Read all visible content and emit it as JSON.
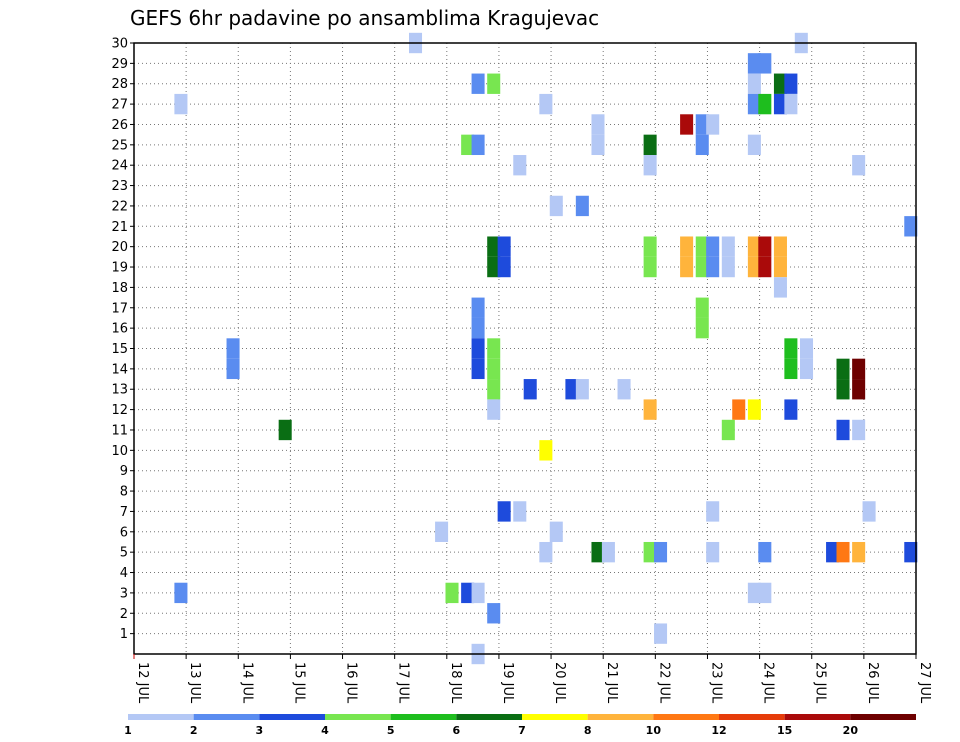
{
  "chart_data": {
    "type": "heatmap",
    "title": "GEFS 6hr padavine po ansamblima Kragujevac",
    "x_tick_labels": [
      "12 JUL",
      "13 JUL",
      "14 JUL",
      "15 JUL",
      "16 JUL",
      "17 JUL",
      "18 JUL",
      "19 JUL",
      "20 JUL",
      "21 JUL",
      "22 JUL",
      "23 JUL",
      "24 JUL",
      "25 JUL",
      "26 JUL",
      "27 JUL"
    ],
    "y_tick_labels": [
      "1",
      "2",
      "3",
      "4",
      "5",
      "6",
      "7",
      "8",
      "9",
      "10",
      "11",
      "12",
      "13",
      "14",
      "15",
      "16",
      "17",
      "18",
      "19",
      "20",
      "21",
      "22",
      "23",
      "24",
      "25",
      "26",
      "27",
      "28",
      "29",
      "30"
    ],
    "xlim_days": [
      12,
      27
    ],
    "ylim": [
      0,
      30
    ],
    "grid": true,
    "legend": {
      "position": "bottom",
      "labels": [
        "1",
        "2",
        "3",
        "4",
        "5",
        "6",
        "7",
        "8",
        "10",
        "12",
        "15",
        "20"
      ],
      "colors": [
        "#b4c8f5",
        "#5a8cf0",
        "#1e4bdc",
        "#78e650",
        "#1ebe1e",
        "#0a6e14",
        "#ffff00",
        "#ffb43c",
        "#ff7814",
        "#e63c0a",
        "#aa0a0a",
        "#6e0000"
      ]
    },
    "cells": [
      {
        "m": 30,
        "t": 17.4,
        "c": 1
      },
      {
        "m": 30,
        "t": 24.8,
        "c": 1
      },
      {
        "m": 29,
        "t": 23.9,
        "c": 2
      },
      {
        "m": 29,
        "t": 24.1,
        "c": 2
      },
      {
        "m": 28,
        "t": 18.6,
        "c": 2
      },
      {
        "m": 28,
        "t": 18.9,
        "c": 4
      },
      {
        "m": 28,
        "t": 23.9,
        "c": 1
      },
      {
        "m": 28,
        "t": 24.4,
        "c": 6
      },
      {
        "m": 28,
        "t": 24.6,
        "c": 3
      },
      {
        "m": 27,
        "t": 12.9,
        "c": 1
      },
      {
        "m": 27,
        "t": 19.9,
        "c": 1
      },
      {
        "m": 27,
        "t": 23.9,
        "c": 2
      },
      {
        "m": 27,
        "t": 24.1,
        "c": 5
      },
      {
        "m": 27,
        "t": 24.4,
        "c": 3
      },
      {
        "m": 27,
        "t": 24.6,
        "c": 1
      },
      {
        "m": 26,
        "t": 20.9,
        "c": 1
      },
      {
        "m": 26,
        "t": 22.6,
        "c": 11
      },
      {
        "m": 26,
        "t": 22.9,
        "c": 2
      },
      {
        "m": 26,
        "t": 23.1,
        "c": 1
      },
      {
        "m": 25,
        "t": 18.4,
        "c": 4
      },
      {
        "m": 25,
        "t": 18.6,
        "c": 2
      },
      {
        "m": 25,
        "t": 20.9,
        "c": 1
      },
      {
        "m": 25,
        "t": 21.9,
        "c": 6
      },
      {
        "m": 25,
        "t": 22.9,
        "c": 2
      },
      {
        "m": 25,
        "t": 23.9,
        "c": 1
      },
      {
        "m": 24,
        "t": 19.4,
        "c": 1
      },
      {
        "m": 24,
        "t": 21.9,
        "c": 1
      },
      {
        "m": 24,
        "t": 25.9,
        "c": 1
      },
      {
        "m": 22,
        "t": 20.1,
        "c": 1
      },
      {
        "m": 22,
        "t": 20.6,
        "c": 2
      },
      {
        "m": 21,
        "t": 26.9,
        "c": 2
      },
      {
        "m": 20,
        "t": 18.9,
        "c": 6
      },
      {
        "m": 20,
        "t": 19.1,
        "c": 3
      },
      {
        "m": 20,
        "t": 21.9,
        "c": 4
      },
      {
        "m": 20,
        "t": 22.6,
        "c": 8
      },
      {
        "m": 20,
        "t": 22.9,
        "c": 4
      },
      {
        "m": 20,
        "t": 23.1,
        "c": 2
      },
      {
        "m": 20,
        "t": 23.4,
        "c": 1
      },
      {
        "m": 20,
        "t": 23.9,
        "c": 8
      },
      {
        "m": 20,
        "t": 24.1,
        "c": 11
      },
      {
        "m": 20,
        "t": 24.4,
        "c": 8
      },
      {
        "m": 19,
        "t": 18.9,
        "c": 6
      },
      {
        "m": 19,
        "t": 19.1,
        "c": 3
      },
      {
        "m": 19,
        "t": 21.9,
        "c": 4
      },
      {
        "m": 19,
        "t": 22.6,
        "c": 8
      },
      {
        "m": 19,
        "t": 22.9,
        "c": 4
      },
      {
        "m": 19,
        "t": 23.1,
        "c": 2
      },
      {
        "m": 19,
        "t": 23.4,
        "c": 1
      },
      {
        "m": 19,
        "t": 23.9,
        "c": 8
      },
      {
        "m": 19,
        "t": 24.1,
        "c": 11
      },
      {
        "m": 19,
        "t": 24.4,
        "c": 8
      },
      {
        "m": 18,
        "t": 24.4,
        "c": 1
      },
      {
        "m": 17,
        "t": 18.6,
        "c": 2
      },
      {
        "m": 17,
        "t": 22.9,
        "c": 4
      },
      {
        "m": 16,
        "t": 18.6,
        "c": 2
      },
      {
        "m": 16,
        "t": 22.9,
        "c": 4
      },
      {
        "m": 15,
        "t": 13.9,
        "c": 2
      },
      {
        "m": 15,
        "t": 18.6,
        "c": 3
      },
      {
        "m": 15,
        "t": 18.9,
        "c": 4
      },
      {
        "m": 15,
        "t": 24.6,
        "c": 5
      },
      {
        "m": 15,
        "t": 24.9,
        "c": 1
      },
      {
        "m": 14,
        "t": 13.9,
        "c": 2
      },
      {
        "m": 14,
        "t": 18.6,
        "c": 3
      },
      {
        "m": 14,
        "t": 18.9,
        "c": 4
      },
      {
        "m": 14,
        "t": 24.6,
        "c": 5
      },
      {
        "m": 14,
        "t": 24.9,
        "c": 1
      },
      {
        "m": 14,
        "t": 25.6,
        "c": 6
      },
      {
        "m": 14,
        "t": 25.9,
        "c": 12
      },
      {
        "m": 13,
        "t": 18.9,
        "c": 4
      },
      {
        "m": 13,
        "t": 19.6,
        "c": 3
      },
      {
        "m": 13,
        "t": 20.4,
        "c": 3
      },
      {
        "m": 13,
        "t": 20.6,
        "c": 1
      },
      {
        "m": 13,
        "t": 21.4,
        "c": 1
      },
      {
        "m": 13,
        "t": 25.6,
        "c": 6
      },
      {
        "m": 13,
        "t": 25.9,
        "c": 12
      },
      {
        "m": 12,
        "t": 18.9,
        "c": 1
      },
      {
        "m": 12,
        "t": 21.9,
        "c": 8
      },
      {
        "m": 12,
        "t": 23.6,
        "c": 9
      },
      {
        "m": 12,
        "t": 23.9,
        "c": 7
      },
      {
        "m": 12,
        "t": 24.6,
        "c": 3
      },
      {
        "m": 11,
        "t": 14.9,
        "c": 6
      },
      {
        "m": 11,
        "t": 23.4,
        "c": 4
      },
      {
        "m": 11,
        "t": 25.6,
        "c": 3
      },
      {
        "m": 11,
        "t": 25.9,
        "c": 1
      },
      {
        "m": 10,
        "t": 19.9,
        "c": 7
      },
      {
        "m": 7,
        "t": 19.1,
        "c": 3
      },
      {
        "m": 7,
        "t": 19.4,
        "c": 1
      },
      {
        "m": 7,
        "t": 23.1,
        "c": 1
      },
      {
        "m": 7,
        "t": 26.1,
        "c": 1
      },
      {
        "m": 6,
        "t": 17.9,
        "c": 1
      },
      {
        "m": 6,
        "t": 20.1,
        "c": 1
      },
      {
        "m": 5,
        "t": 19.9,
        "c": 1
      },
      {
        "m": 5,
        "t": 20.9,
        "c": 6
      },
      {
        "m": 5,
        "t": 21.1,
        "c": 1
      },
      {
        "m": 5,
        "t": 21.9,
        "c": 4
      },
      {
        "m": 5,
        "t": 22.1,
        "c": 2
      },
      {
        "m": 5,
        "t": 23.1,
        "c": 1
      },
      {
        "m": 5,
        "t": 24.1,
        "c": 2
      },
      {
        "m": 5,
        "t": 25.4,
        "c": 3
      },
      {
        "m": 5,
        "t": 25.6,
        "c": 9
      },
      {
        "m": 5,
        "t": 25.9,
        "c": 8
      },
      {
        "m": 5,
        "t": 26.9,
        "c": 3
      },
      {
        "m": 3,
        "t": 12.9,
        "c": 2
      },
      {
        "m": 3,
        "t": 18.1,
        "c": 4
      },
      {
        "m": 3,
        "t": 18.4,
        "c": 3
      },
      {
        "m": 3,
        "t": 18.6,
        "c": 1
      },
      {
        "m": 3,
        "t": 23.9,
        "c": 1
      },
      {
        "m": 3,
        "t": 24.1,
        "c": 1
      },
      {
        "m": 2,
        "t": 18.9,
        "c": 2
      },
      {
        "m": 1,
        "t": 22.1,
        "c": 1
      },
      {
        "m": 0,
        "t": 18.6,
        "c": 1
      }
    ]
  }
}
